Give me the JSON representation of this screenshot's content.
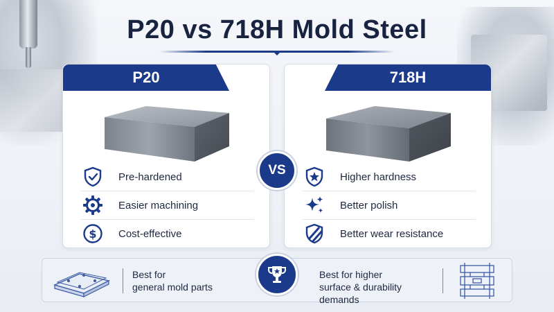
{
  "title": "P20 vs 718H Mold Steel",
  "colors": {
    "primary": "#1b3a8a",
    "text": "#1d2740",
    "background": "#eef1f6"
  },
  "vs_label": "VS",
  "left": {
    "name": "P20",
    "features": [
      {
        "icon": "shield-check-icon",
        "label": "Pre-hardened"
      },
      {
        "icon": "gear-icon",
        "label": "Easier machining"
      },
      {
        "icon": "dollar-coin-icon",
        "label": "Cost-effective"
      }
    ],
    "best_for": [
      "Best for",
      "general mold parts"
    ]
  },
  "right": {
    "name": "718H",
    "features": [
      {
        "icon": "shield-star-icon",
        "label": "Higher hardness"
      },
      {
        "icon": "sparkle-icon",
        "label": "Better polish"
      },
      {
        "icon": "shield-stripes-icon",
        "label": "Better wear resistance"
      }
    ],
    "best_for": [
      "Best for higher",
      "surface & durability demands"
    ]
  }
}
